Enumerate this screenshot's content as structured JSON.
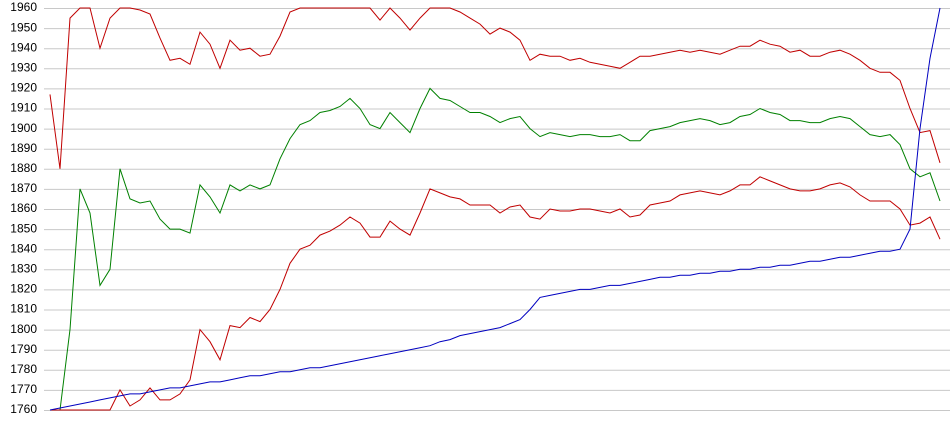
{
  "chart_data": {
    "type": "line",
    "categories": [
      null,
      null,
      null,
      null,
      null,
      null,
      null,
      null,
      null,
      null,
      null,
      null,
      null,
      null,
      null,
      null,
      null,
      null,
      null,
      null,
      null,
      null,
      null,
      null,
      null,
      null,
      null,
      null,
      null,
      null,
      null,
      null,
      null,
      null,
      null,
      null,
      null,
      null,
      null,
      null,
      null,
      null,
      null,
      null,
      null,
      null,
      null,
      null,
      null,
      null,
      null,
      null,
      null,
      null,
      null,
      null,
      null,
      null,
      null,
      null,
      null,
      null,
      null,
      null,
      null,
      null,
      null,
      null,
      null,
      null,
      null,
      null,
      null,
      null,
      null,
      null,
      null,
      null,
      null,
      null,
      null,
      null,
      null,
      null,
      null,
      null,
      null,
      null,
      null,
      null
    ],
    "series": [
      {
        "color": "#c00000",
        "values": [
          1917,
          1880,
          1955,
          1960,
          1960,
          1940,
          1955,
          1960,
          1960,
          1959,
          1957,
          1945,
          1934,
          1935,
          1932,
          1948,
          1942,
          1930,
          1944,
          1939,
          1940,
          1936,
          1937,
          1946,
          1958,
          1960,
          1960,
          1960,
          1960,
          1960,
          1960,
          1960,
          1960,
          1954,
          1960,
          1955,
          1949,
          1955,
          1960,
          1960,
          1960,
          1958,
          1955,
          1952,
          1947,
          1950,
          1948,
          1944,
          1934,
          1937,
          1936,
          1936,
          1934,
          1935,
          1933,
          1932,
          1931,
          1930,
          1933,
          1936,
          1936,
          1937,
          1938,
          1939,
          1938,
          1939,
          1938,
          1937,
          1939,
          1941,
          1941,
          1944,
          1942,
          1941,
          1938,
          1939,
          1936,
          1936,
          1938,
          1939,
          1937,
          1934,
          1930,
          1928,
          1928,
          1924,
          1910,
          1898,
          1899,
          1883
        ]
      },
      {
        "color": "#008000",
        "values": [
          1760,
          1760,
          1800,
          1870,
          1858,
          1822,
          1830,
          1880,
          1865,
          1863,
          1864,
          1855,
          1850,
          1850,
          1848,
          1872,
          1866,
          1858,
          1872,
          1869,
          1872,
          1870,
          1872,
          1885,
          1895,
          1902,
          1904,
          1908,
          1909,
          1911,
          1915,
          1910,
          1902,
          1900,
          1908,
          1903,
          1898,
          1910,
          1920,
          1915,
          1914,
          1911,
          1908,
          1908,
          1906,
          1903,
          1905,
          1906,
          1900,
          1896,
          1898,
          1897,
          1896,
          1897,
          1897,
          1896,
          1896,
          1897,
          1894,
          1894,
          1899,
          1900,
          1901,
          1903,
          1904,
          1905,
          1904,
          1902,
          1903,
          1906,
          1907,
          1910,
          1908,
          1907,
          1904,
          1904,
          1903,
          1903,
          1905,
          1906,
          1905,
          1901,
          1897,
          1896,
          1897,
          1892,
          1880,
          1876,
          1878,
          1864
        ]
      },
      {
        "color": "#c00000",
        "values": [
          1760,
          1760,
          1760,
          1760,
          1760,
          1760,
          1760,
          1770,
          1762,
          1765,
          1771,
          1765,
          1765,
          1768,
          1775,
          1800,
          1794,
          1785,
          1802,
          1801,
          1806,
          1804,
          1810,
          1820,
          1833,
          1840,
          1842,
          1847,
          1849,
          1852,
          1856,
          1853,
          1846,
          1846,
          1854,
          1850,
          1847,
          1858,
          1870,
          1868,
          1866,
          1865,
          1862,
          1862,
          1862,
          1858,
          1861,
          1862,
          1856,
          1855,
          1860,
          1859,
          1859,
          1860,
          1860,
          1859,
          1858,
          1860,
          1856,
          1857,
          1862,
          1863,
          1864,
          1867,
          1868,
          1869,
          1868,
          1867,
          1869,
          1872,
          1872,
          1876,
          1874,
          1872,
          1870,
          1869,
          1869,
          1870,
          1872,
          1873,
          1871,
          1867,
          1864,
          1864,
          1864,
          1860,
          1852,
          1853,
          1856,
          1845
        ]
      },
      {
        "color": "#0000c0",
        "values": [
          1760,
          1761,
          1762,
          1763,
          1764,
          1765,
          1766,
          1767,
          1768,
          1768,
          1769,
          1770,
          1771,
          1771,
          1772,
          1773,
          1774,
          1774,
          1775,
          1776,
          1777,
          1777,
          1778,
          1779,
          1779,
          1780,
          1781,
          1781,
          1782,
          1783,
          1784,
          1785,
          1786,
          1787,
          1788,
          1789,
          1790,
          1791,
          1792,
          1794,
          1795,
          1797,
          1798,
          1799,
          1800,
          1801,
          1803,
          1805,
          1810,
          1816,
          1817,
          1818,
          1819,
          1820,
          1820,
          1821,
          1822,
          1822,
          1823,
          1824,
          1825,
          1826,
          1826,
          1827,
          1827,
          1828,
          1828,
          1829,
          1829,
          1830,
          1830,
          1831,
          1831,
          1832,
          1832,
          1833,
          1834,
          1834,
          1835,
          1836,
          1836,
          1837,
          1838,
          1839,
          1839,
          1840,
          1850,
          1900,
          1935,
          1960
        ]
      }
    ],
    "ylim": [
      1760,
      1960
    ],
    "yticks": [
      1760,
      1770,
      1780,
      1790,
      1800,
      1810,
      1820,
      1830,
      1840,
      1850,
      1860,
      1870,
      1880,
      1890,
      1900,
      1910,
      1920,
      1930,
      1940,
      1950,
      1960
    ],
    "grid": true
  }
}
